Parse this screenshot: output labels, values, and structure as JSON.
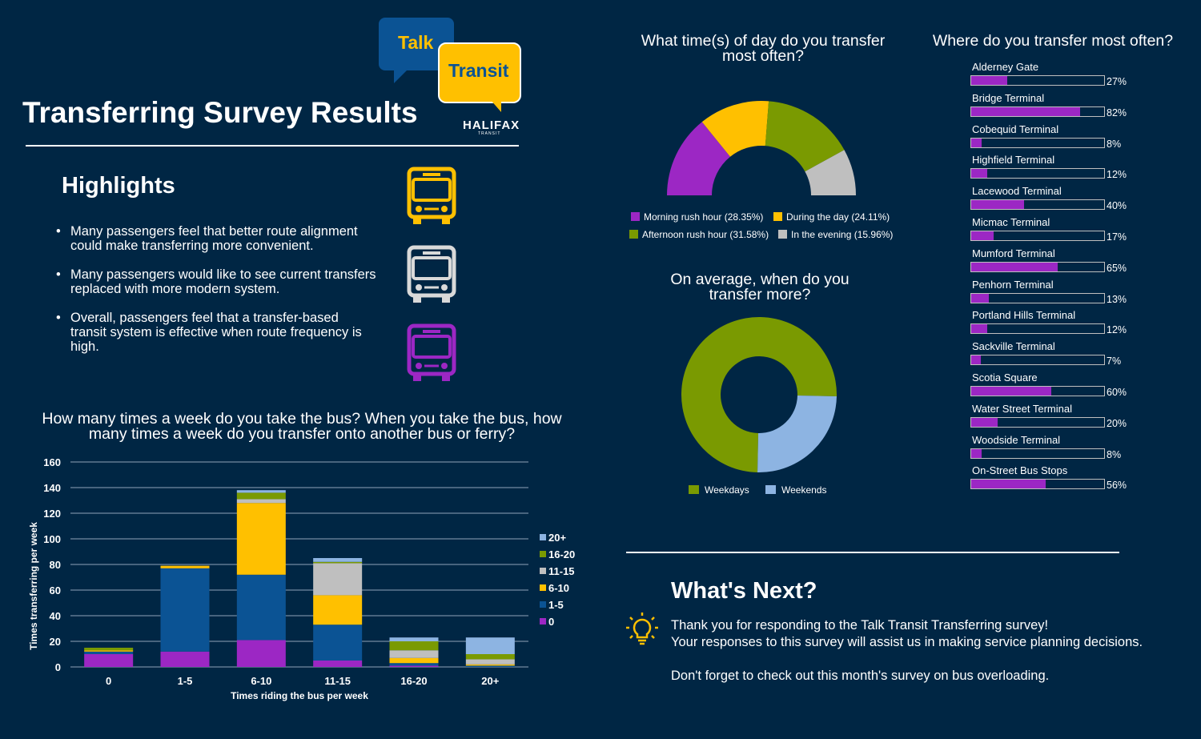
{
  "logo": {
    "talk": "Talk",
    "transit": "Transit",
    "halifax": "HALIFAX",
    "halifax_sub": "TRANSIT"
  },
  "title": "Transferring Survey Results",
  "highlights": {
    "title": "Highlights",
    "items": [
      "Many passengers feel that better route alignment could make transferring more convenient.",
      "Many passengers would like to see current transfers replaced with more modern system.",
      "Overall, passengers feel that a transfer-based transit system is effective when route frequency is high."
    ],
    "bus_icon_colors": [
      "#ffc000",
      "#d9d9d9",
      "#9c27c4"
    ]
  },
  "colors": {
    "background": "#002644",
    "purple": "#9c27c4",
    "dark_blue": "#0b5394",
    "yellow": "#ffc000",
    "grey": "#bfbfbf",
    "green": "#7a9a01",
    "light_blue": "#8db4e2"
  },
  "chart_data": [
    {
      "type": "bar",
      "stacked": true,
      "title": "How many times a week do you take the bus? When you take the bus, how many times a week do you transfer onto another bus or ferry?",
      "xlabel": "Times riding the bus per week",
      "ylabel": "Times transferring per week",
      "categories": [
        "0",
        "1-5",
        "6-10",
        "11-15",
        "16-20",
        "20+"
      ],
      "ylim": [
        0,
        160
      ],
      "yticks": [
        0,
        20,
        40,
        60,
        80,
        100,
        120,
        140,
        160
      ],
      "grid": true,
      "legend_position": "right",
      "series": [
        {
          "name": "0",
          "color": "#9c27c4",
          "values": [
            10,
            12,
            21,
            5,
            1,
            0
          ]
        },
        {
          "name": "1-5",
          "color": "#0b5394",
          "values": [
            2,
            65,
            51,
            28,
            2,
            1
          ]
        },
        {
          "name": "6-10",
          "color": "#ffc000",
          "values": [
            1,
            2,
            56,
            23,
            4,
            1
          ]
        },
        {
          "name": "11-15",
          "color": "#bfbfbf",
          "values": [
            0,
            0,
            3,
            25,
            6,
            4
          ]
        },
        {
          "name": "16-20",
          "color": "#7a9a01",
          "values": [
            2,
            0,
            5,
            1,
            7,
            4
          ]
        },
        {
          "name": "20+",
          "color": "#8db4e2",
          "values": [
            0,
            0,
            2,
            3,
            3,
            13
          ]
        }
      ]
    },
    {
      "type": "pie",
      "variant": "half-donut",
      "title": "What time(s) of day do you transfer most often?",
      "slices": [
        {
          "label": "Morning rush hour (28.35%)",
          "value": 28.35,
          "color": "#9c27c4"
        },
        {
          "label": "During the day (24.11%)",
          "value": 24.11,
          "color": "#ffc000"
        },
        {
          "label": "Afternoon rush hour (31.58%)",
          "value": 31.58,
          "color": "#7a9a01"
        },
        {
          "label": "In the evening (15.96%)",
          "value": 15.96,
          "color": "#bfbfbf"
        }
      ]
    },
    {
      "type": "pie",
      "variant": "donut",
      "title": "On average, when do you transfer more?",
      "slices": [
        {
          "label": "Weekdays",
          "value": 75,
          "color": "#7a9a01"
        },
        {
          "label": "Weekends",
          "value": 25,
          "color": "#8db4e2"
        }
      ]
    },
    {
      "type": "bar",
      "orientation": "horizontal",
      "title": "Where do you transfer most often?",
      "xlim": [
        0,
        100
      ],
      "bars": [
        {
          "label": "Alderney Gate",
          "value": 27,
          "pct": "27%"
        },
        {
          "label": "Bridge Terminal",
          "value": 82,
          "pct": "82%"
        },
        {
          "label": "Cobequid Terminal",
          "value": 8,
          "pct": "8%"
        },
        {
          "label": "Highfield Terminal",
          "value": 12,
          "pct": "12%"
        },
        {
          "label": "Lacewood Terminal",
          "value": 40,
          "pct": "40%"
        },
        {
          "label": "Micmac Terminal",
          "value": 17,
          "pct": "17%"
        },
        {
          "label": "Mumford Terminal",
          "value": 65,
          "pct": "65%"
        },
        {
          "label": "Penhorn Terminal",
          "value": 13,
          "pct": "13%"
        },
        {
          "label": "Portland Hills Terminal",
          "value": 12,
          "pct": "12%"
        },
        {
          "label": "Sackville Terminal",
          "value": 7,
          "pct": "7%"
        },
        {
          "label": "Scotia Square",
          "value": 60,
          "pct": "60%"
        },
        {
          "label": "Water Street Terminal",
          "value": 20,
          "pct": "20%"
        },
        {
          "label": "Woodside Terminal",
          "value": 8,
          "pct": "8%"
        },
        {
          "label": "On-Street Bus Stops",
          "value": 56,
          "pct": "56%"
        }
      ]
    }
  ],
  "whats_next": {
    "title": "What's Next?",
    "line1": "Thank you for responding to the Talk Transit Transferring survey!",
    "line2": "Your responses to this survey will assist us in making service planning decisions.",
    "line3": "Don't forget to check out this month's survey on bus overloading."
  }
}
